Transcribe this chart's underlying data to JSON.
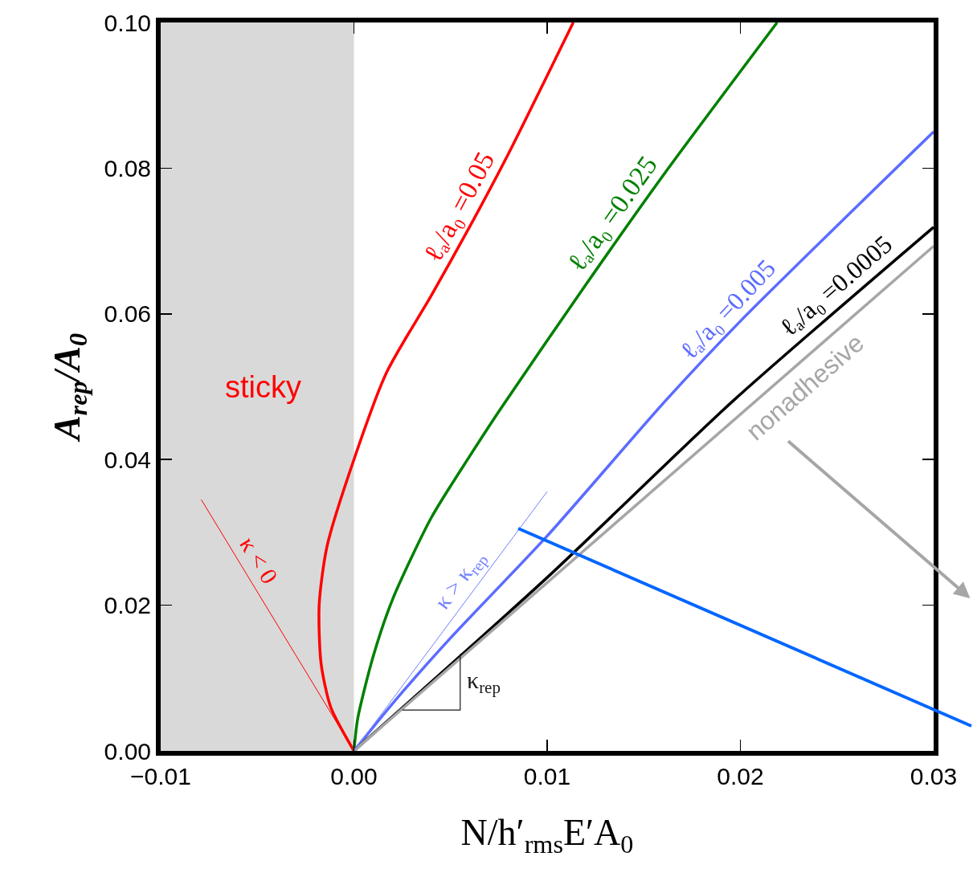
{
  "chart_data": {
    "type": "line",
    "xlabel": "N/h′$_{rms}$E′A$_{0}$",
    "ylabel": "A$_{rep}$/A$_{0}$",
    "xlim": [
      -0.01,
      0.03
    ],
    "ylim": [
      0,
      0.1
    ],
    "xticks": [
      {
        "value": -0.01,
        "label": "−0.01"
      },
      {
        "value": 0,
        "label": "0.00"
      },
      {
        "value": 0.01,
        "label": "0.01"
      },
      {
        "value": 0.02,
        "label": "0.02"
      },
      {
        "value": 0.03,
        "label": "0.03"
      }
    ],
    "yticks": [
      {
        "value": 0,
        "label": "0.00"
      },
      {
        "value": 0.02,
        "label": "0.02"
      },
      {
        "value": 0.04,
        "label": "0.04"
      },
      {
        "value": 0.06,
        "label": "0.06"
      },
      {
        "value": 0.08,
        "label": "0.08"
      },
      {
        "value": 0.1,
        "label": "0.10"
      }
    ],
    "grid": false,
    "legend": false,
    "bands": [
      {
        "axis": "x",
        "from": -0.01,
        "to": 0,
        "label": "sticky",
        "color": "#d9d9d9"
      }
    ],
    "series": [
      {
        "name": "ℓₐ/a₀ =0.05",
        "color": "#ff0000",
        "x": [
          0,
          -0.0012,
          -0.0017,
          -0.0018,
          -0.0014,
          0,
          0.0017,
          0.004,
          0.006,
          0.008,
          0.01135
        ],
        "values": [
          0,
          0.006,
          0.012,
          0.02,
          0.028,
          0.04,
          0.052,
          0.0625,
          0.072,
          0.082,
          0.1
        ]
      },
      {
        "name": "ℓₐ/a₀ =0.025",
        "color": "#008000",
        "x": [
          0,
          0.0002,
          0.001,
          0.002,
          0.004,
          0.006,
          0.0076,
          0.012,
          0.016,
          0.0219
        ],
        "values": [
          0,
          0.0045,
          0.013,
          0.0208,
          0.032,
          0.0405,
          0.047,
          0.064,
          0.079,
          0.1
        ]
      },
      {
        "name": "ℓₐ/a₀ =0.005",
        "color": "#5b6cff",
        "x": [
          0,
          0.002,
          0.005,
          0.01,
          0.0161,
          0.02,
          0.03
        ],
        "values": [
          0,
          0.0065,
          0.0155,
          0.0295,
          0.048,
          0.059,
          0.085
        ]
      },
      {
        "name": "ℓₐ/a₀ =0.0005",
        "color": "#000000",
        "x": [
          0,
          0.01,
          0.0196,
          0.03
        ],
        "values": [
          0,
          0.0238,
          0.048,
          0.0719
        ]
      },
      {
        "name": "nonadhesive",
        "color": "#a6a6a6",
        "x": [
          0,
          0.03
        ],
        "values": [
          0,
          0.0693
        ]
      },
      {
        "name": "κ < 0",
        "color": "#ff0000",
        "x": [
          0,
          -0.0079
        ],
        "values": [
          0,
          0.0345
        ]
      },
      {
        "name": "κ > κ$_{rep}$",
        "color": "#7080ff",
        "x": [
          0,
          0.01
        ],
        "values": [
          0,
          0.0356
        ]
      },
      {
        "name": "κ$_{rep}$",
        "color": "#1a1a1a",
        "x": [
          0.0025,
          0.0055,
          0.0055
        ],
        "values": [
          0.0056,
          0.0056,
          0.0133
        ]
      }
    ]
  }
}
